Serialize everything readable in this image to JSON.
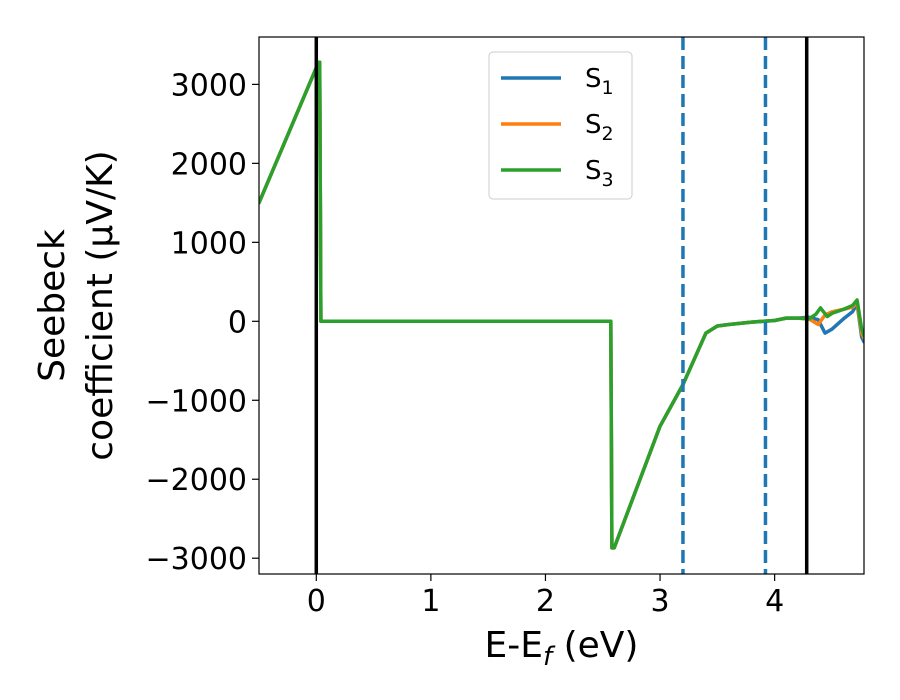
{
  "chart_data": {
    "type": "line",
    "title": "",
    "xlabel": {
      "base": "E-E",
      "sub": "f",
      "tail": " (eV)"
    },
    "ylabel": {
      "line1": "Seebeck",
      "line2": "coefficient  (μV/K)"
    },
    "xlim": [
      -0.5,
      4.78
    ],
    "ylim": [
      -3200,
      3600
    ],
    "xticks": [
      0,
      1,
      2,
      3,
      4
    ],
    "xtick_labels": [
      "0",
      "1",
      "2",
      "3",
      "4"
    ],
    "yticks": [
      -3000,
      -2000,
      -1000,
      0,
      1000,
      2000,
      3000
    ],
    "ytick_labels": [
      "−3000",
      "−2000",
      "−1000",
      "0",
      "1000",
      "2000",
      "3000"
    ],
    "grid": false,
    "legend_position": "top-center",
    "vertical_lines": [
      {
        "x": 0.0,
        "style": "solid",
        "color": "#000000"
      },
      {
        "x": 3.2,
        "style": "dashed",
        "color": "#1f77b4"
      },
      {
        "x": 3.92,
        "style": "dashed",
        "color": "#1f77b4"
      },
      {
        "x": 4.28,
        "style": "solid",
        "color": "#000000"
      }
    ],
    "series": [
      {
        "name": "S",
        "sub": "1",
        "color": "#1f77b4",
        "x": [
          -0.5,
          0.02,
          0.03,
          0.04,
          2.57,
          2.58,
          2.6,
          3.0,
          3.2,
          3.4,
          3.5,
          3.6,
          3.8,
          4.0,
          4.1,
          4.2,
          4.3,
          4.38,
          4.44,
          4.5,
          4.6,
          4.68,
          4.72,
          4.76,
          4.78
        ],
        "y": [
          1500,
          3280,
          3280,
          0,
          0,
          -2870,
          -2870,
          -1330,
          -800,
          -150,
          -60,
          -40,
          -10,
          10,
          40,
          40,
          50,
          20,
          -150,
          -100,
          30,
          120,
          220,
          -200,
          -260
        ]
      },
      {
        "name": "S",
        "sub": "2",
        "color": "#ff7f0e",
        "x": [
          -0.5,
          0.02,
          0.03,
          0.04,
          2.57,
          2.58,
          2.6,
          3.0,
          3.2,
          3.4,
          3.5,
          3.6,
          3.8,
          4.0,
          4.1,
          4.2,
          4.3,
          4.38,
          4.44,
          4.5,
          4.6,
          4.68,
          4.72,
          4.76,
          4.78
        ],
        "y": [
          1500,
          3280,
          3280,
          0,
          0,
          -2870,
          -2870,
          -1330,
          -800,
          -150,
          -60,
          -40,
          -10,
          10,
          40,
          40,
          30,
          -40,
          80,
          120,
          150,
          180,
          230,
          -150,
          -210
        ]
      },
      {
        "name": "S",
        "sub": "3",
        "color": "#2ca02c",
        "x": [
          -0.5,
          0.02,
          0.03,
          0.04,
          2.57,
          2.58,
          2.6,
          3.0,
          3.2,
          3.4,
          3.5,
          3.6,
          3.8,
          4.0,
          4.1,
          4.2,
          4.3,
          4.36,
          4.4,
          4.46,
          4.5,
          4.6,
          4.68,
          4.72,
          4.76,
          4.78
        ],
        "y": [
          1500,
          3280,
          3280,
          0,
          0,
          -2870,
          -2870,
          -1330,
          -800,
          -150,
          -60,
          -40,
          -10,
          10,
          40,
          40,
          30,
          90,
          170,
          60,
          100,
          150,
          200,
          270,
          -100,
          -180
        ]
      }
    ]
  }
}
